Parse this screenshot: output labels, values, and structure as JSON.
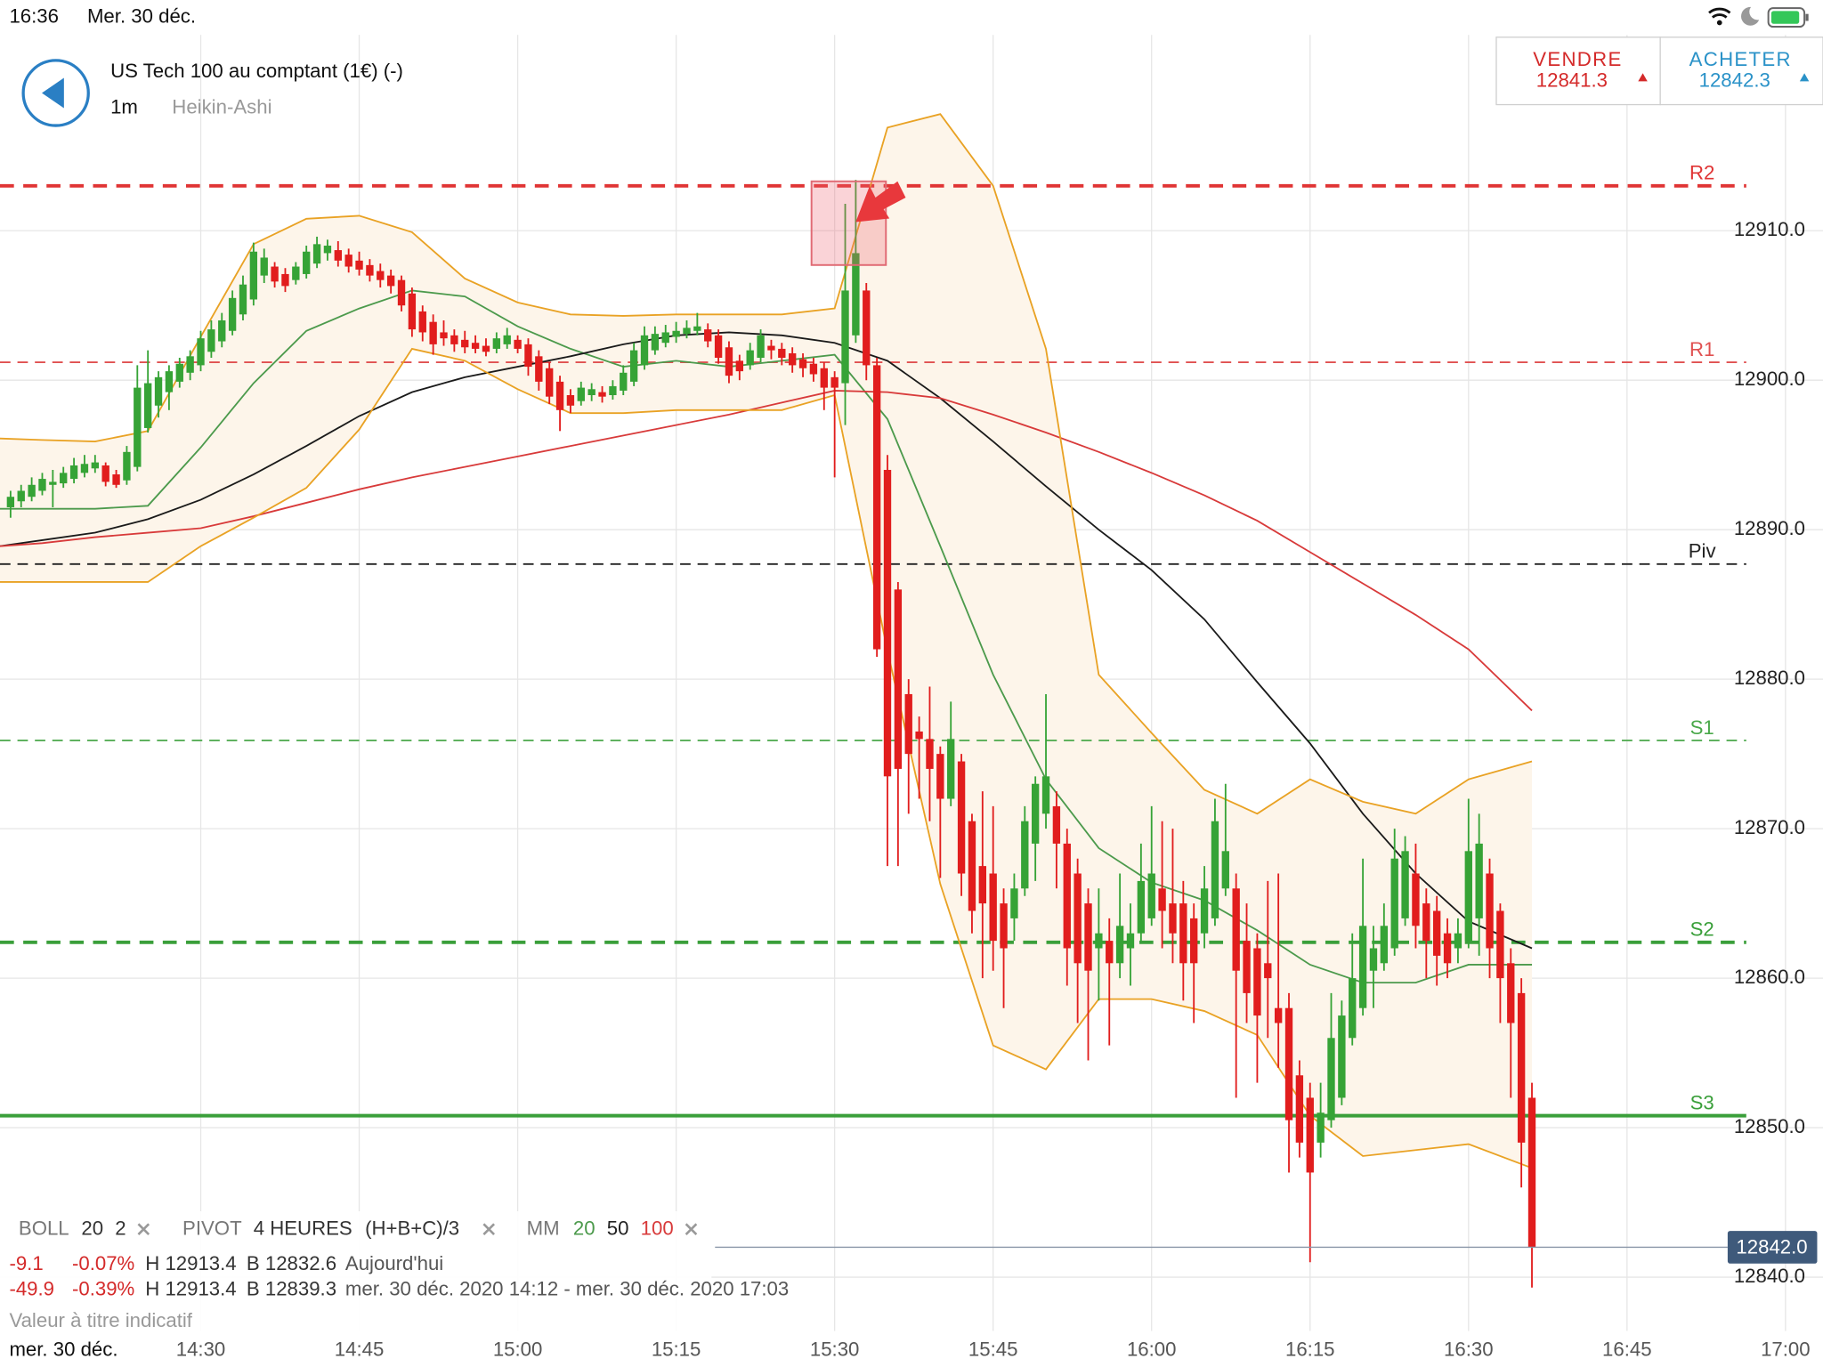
{
  "status_bar": {
    "time": "16:36",
    "date": "Mer. 30 déc."
  },
  "header": {
    "instrument": "US Tech 100 au comptant (1€) (-)",
    "interval": "1m",
    "chart_style": "Heikin-Ashi"
  },
  "quote": {
    "sell_label": "VENDRE",
    "sell": "12841.3",
    "buy_label": "ACHETER",
    "buy": "12842.3"
  },
  "indicators": {
    "boll": {
      "name": "BOLL",
      "period": "20",
      "deviation": "2"
    },
    "pivot": {
      "name": "PIVOT",
      "timeframe": "4 HEURES",
      "formula": "(H+B+C)/3"
    },
    "mm": {
      "name": "MM",
      "periods": [
        "20",
        "50",
        "100"
      ]
    }
  },
  "stats": [
    {
      "change": "-9.1",
      "change_pct": "-0.07%",
      "high": "H 12913.4",
      "low": "B 12832.6",
      "period": "Aujourd'hui"
    },
    {
      "change": "-49.9",
      "change_pct": "-0.39%",
      "high": "H 12913.4",
      "low": "B 12839.3",
      "period": "mer. 30 déc. 2020 14:12 - mer. 30 déc. 2020 17:03"
    }
  ],
  "disclaimer": "Valeur à titre indicatif",
  "chart_data": {
    "type": "candlestick",
    "x_date_label": "mer. 30 déc.",
    "xlim": [
      "14:11",
      "17:03"
    ],
    "xticks": [
      "14:30",
      "14:45",
      "15:00",
      "15:15",
      "15:30",
      "15:45",
      "16:00",
      "16:15",
      "16:30",
      "16:45",
      "17:00"
    ],
    "ylim": [
      12836.4,
      12923.1
    ],
    "yticks": [
      {
        "value": 12840,
        "label": "12840.0"
      },
      {
        "value": 12850,
        "label": "12850.0"
      },
      {
        "value": 12860,
        "label": "12860.0"
      },
      {
        "value": 12870,
        "label": "12870.0"
      },
      {
        "value": 12880,
        "label": "12880.0"
      },
      {
        "value": 12890,
        "label": "12890.0"
      },
      {
        "value": 12900,
        "label": "12900.0"
      },
      {
        "value": 12910,
        "label": "12910.0"
      }
    ],
    "grid": true,
    "up_color": "#36a336",
    "down_color": "#e11d1d",
    "x": [
      "14:12",
      "14:13",
      "14:14",
      "14:15",
      "14:16",
      "14:17",
      "14:18",
      "14:19",
      "14:20",
      "14:21",
      "14:22",
      "14:23",
      "14:24",
      "14:25",
      "14:26",
      "14:27",
      "14:28",
      "14:29",
      "14:30",
      "14:31",
      "14:32",
      "14:33",
      "14:34",
      "14:35",
      "14:36",
      "14:37",
      "14:38",
      "14:39",
      "14:40",
      "14:41",
      "14:42",
      "14:43",
      "14:44",
      "14:45",
      "14:46",
      "14:47",
      "14:48",
      "14:49",
      "14:50",
      "14:51",
      "14:52",
      "14:53",
      "14:54",
      "14:55",
      "14:56",
      "14:57",
      "14:58",
      "14:59",
      "15:00",
      "15:01",
      "15:02",
      "15:03",
      "15:04",
      "15:05",
      "15:06",
      "15:07",
      "15:08",
      "15:09",
      "15:10",
      "15:11",
      "15:12",
      "15:13",
      "15:14",
      "15:15",
      "15:16",
      "15:17",
      "15:18",
      "15:19",
      "15:20",
      "15:21",
      "15:22",
      "15:23",
      "15:24",
      "15:25",
      "15:26",
      "15:27",
      "15:28",
      "15:29",
      "15:30",
      "15:31",
      "15:32",
      "15:33",
      "15:34",
      "15:35",
      "15:36",
      "15:37",
      "15:38",
      "15:39",
      "15:40",
      "15:41",
      "15:42",
      "15:43",
      "15:44",
      "15:45",
      "15:46",
      "15:47",
      "15:48",
      "15:49",
      "15:50",
      "15:51",
      "15:52",
      "15:53",
      "15:54",
      "15:55",
      "15:56",
      "15:57",
      "15:58",
      "15:59",
      "16:00",
      "16:01",
      "16:02",
      "16:03",
      "16:04",
      "16:05",
      "16:06",
      "16:07",
      "16:08",
      "16:09",
      "16:10",
      "16:11",
      "16:12",
      "16:13",
      "16:14",
      "16:15",
      "16:16",
      "16:17",
      "16:18",
      "16:19",
      "16:20",
      "16:21",
      "16:22",
      "16:23",
      "16:24",
      "16:25",
      "16:26",
      "16:27",
      "16:28",
      "16:29",
      "16:30",
      "16:31",
      "16:32",
      "16:33",
      "16:34",
      "16:35",
      "16:36"
    ],
    "open": [
      12891.5,
      12891.9,
      12892.2,
      12892.6,
      12893.0,
      12893.1,
      12893.4,
      12893.8,
      12894.1,
      12894.3,
      12893.7,
      12893.3,
      12894.2,
      12896.8,
      12898.3,
      12899.2,
      12899.9,
      12900.5,
      12901.0,
      12901.9,
      12902.6,
      12903.3,
      12904.4,
      12905.4,
      12907.0,
      12907.6,
      12907.1,
      12906.7,
      12907.1,
      12907.8,
      12908.5,
      12908.7,
      12908.4,
      12908.0,
      12907.7,
      12907.3,
      12907.0,
      12906.7,
      12905.8,
      12904.6,
      12903.9,
      12903.2,
      12903.0,
      12902.7,
      12902.5,
      12902.3,
      12902.1,
      12902.4,
      12902.7,
      12902.4,
      12901.6,
      12900.8,
      12899.9,
      12899.0,
      12898.6,
      12899.0,
      12899.2,
      12899.0,
      12899.3,
      12899.9,
      12901.0,
      12902.0,
      12902.5,
      12902.9,
      12903.1,
      12903.3,
      12903.4,
      12903.0,
      12902.2,
      12901.3,
      12901.0,
      12901.5,
      12902.3,
      12902.1,
      12901.8,
      12901.4,
      12901.1,
      12900.8,
      12900.2,
      12899.8,
      12903.0,
      12906.0,
      12901.0,
      12894.0,
      12886.0,
      12879.0,
      12876.5,
      12876.0,
      12875.0,
      12872.0,
      12874.5,
      12870.5,
      12867.5,
      12867.0,
      12865.0,
      12864.0,
      12866.0,
      12869.0,
      12871.0,
      12871.5,
      12869.0,
      12867.0,
      12865.0,
      12862.0,
      12862.5,
      12861.0,
      12862.0,
      12863.0,
      12864.0,
      12866.0,
      12865.0,
      12865.0,
      12864.0,
      12863.0,
      12864.0,
      12866.0,
      12866.0,
      12862.5,
      12862.0,
      12861.0,
      12858.0,
      12858.0,
      12853.5,
      12852.0,
      12849.0,
      12850.5,
      12852.0,
      12856.0,
      12858.0,
      12860.5,
      12861.0,
      12862.0,
      12864.0,
      12867.0,
      12865.0,
      12864.5,
      12863.0,
      12862.0,
      12862.5,
      12864.0,
      12867.0,
      12864.5,
      12861.0,
      12859.0,
      12852.0
    ],
    "high": [
      12892.6,
      12893.0,
      12893.5,
      12893.8,
      12894.0,
      12894.2,
      12894.8,
      12895.0,
      12895.0,
      12894.5,
      12894.0,
      12895.6,
      12901.0,
      12902.0,
      12900.6,
      12901.0,
      12901.5,
      12902.0,
      12903.3,
      12904.0,
      12904.5,
      12906.0,
      12907.0,
      12909.2,
      12908.8,
      12907.9,
      12907.5,
      12907.9,
      12909.0,
      12909.6,
      12909.4,
      12909.3,
      12908.8,
      12908.6,
      12908.1,
      12907.8,
      12907.4,
      12907.0,
      12906.2,
      12905.0,
      12904.4,
      12904.0,
      12903.4,
      12903.3,
      12903.0,
      12902.8,
      12903.2,
      12903.5,
      12903.0,
      12902.8,
      12902.0,
      12901.2,
      12900.3,
      12899.4,
      12899.9,
      12899.8,
      12899.6,
      12900.0,
      12901.0,
      12902.5,
      12903.6,
      12903.6,
      12903.7,
      12903.9,
      12904.0,
      12904.5,
      12903.8,
      12903.4,
      12902.6,
      12901.7,
      12902.5,
      12903.4,
      12902.7,
      12902.5,
      12902.2,
      12901.8,
      12901.5,
      12901.2,
      12900.6,
      12911.8,
      12913.4,
      12906.5,
      12901.5,
      12895.0,
      12886.5,
      12880.0,
      12877.5,
      12879.5,
      12875.5,
      12878.5,
      12875.0,
      12871.0,
      12872.5,
      12871.5,
      12866.0,
      12867.0,
      12871.5,
      12873.5,
      12879.0,
      12872.5,
      12870.0,
      12868.0,
      12866.0,
      12866.0,
      12864.0,
      12867.0,
      12865.0,
      12869.0,
      12871.5,
      12870.5,
      12870.0,
      12866.5,
      12865.0,
      12867.5,
      12872.0,
      12873.0,
      12867.0,
      12865.0,
      12863.0,
      12866.5,
      12867.0,
      12859.0,
      12854.5,
      12853.0,
      12853.0,
      12859.0,
      12858.5,
      12863.0,
      12868.0,
      12863.5,
      12865.0,
      12870.0,
      12869.5,
      12869.0,
      12866.0,
      12865.5,
      12864.0,
      12864.0,
      12872.0,
      12871.0,
      12868.0,
      12865.0,
      12862.0,
      12860.0,
      12853.0
    ],
    "low": [
      12890.8,
      12891.5,
      12891.9,
      12892.3,
      12891.5,
      12892.8,
      12893.1,
      12893.5,
      12893.8,
      12892.9,
      12892.8,
      12893.0,
      12893.9,
      12896.5,
      12897.5,
      12898.0,
      12899.5,
      12900.0,
      12900.6,
      12901.5,
      12902.2,
      12903.0,
      12904.0,
      12905.0,
      12906.5,
      12906.2,
      12905.9,
      12906.4,
      12906.8,
      12907.5,
      12908.0,
      12907.6,
      12907.2,
      12907.0,
      12906.6,
      12906.2,
      12905.8,
      12904.6,
      12902.9,
      12902.6,
      12901.7,
      12902.3,
      12901.9,
      12901.8,
      12901.8,
      12901.6,
      12901.8,
      12902.1,
      12901.8,
      12900.3,
      12899.3,
      12898.4,
      12896.6,
      12897.8,
      12898.3,
      12898.6,
      12898.5,
      12898.7,
      12899.0,
      12899.6,
      12900.7,
      12901.7,
      12902.2,
      12902.5,
      12902.8,
      12903.0,
      12902.2,
      12901.1,
      12899.8,
      12900.0,
      12900.7,
      12901.2,
      12901.4,
      12901.0,
      12900.5,
      12900.2,
      12899.9,
      12898.0,
      12893.5,
      12897.0,
      12902.5,
      12900.0,
      12881.5,
      12867.5,
      12867.5,
      12871.0,
      12872.0,
      12870.5,
      12866.7,
      12871.5,
      12865.5,
      12863.0,
      12860.0,
      12860.5,
      12858.0,
      12862.5,
      12865.5,
      12866.5,
      12870.0,
      12866.0,
      12859.5,
      12857.0,
      12854.5,
      12858.5,
      12855.5,
      12860.0,
      12859.5,
      12862.5,
      12863.5,
      12862.0,
      12861.0,
      12858.5,
      12857.0,
      12862.0,
      12863.5,
      12865.5,
      12852.0,
      12857.0,
      12853.0,
      12856.0,
      12854.0,
      12847.0,
      12848.0,
      12841.0,
      12848.0,
      12850.0,
      12851.5,
      12855.5,
      12857.5,
      12858.0,
      12860.5,
      12861.5,
      12863.5,
      12862.0,
      12860.0,
      12859.5,
      12860.0,
      12861.0,
      12862.0,
      12861.5,
      12860.0,
      12857.0,
      12852.0,
      12846.0,
      12839.3
    ],
    "close": [
      12892.2,
      12892.6,
      12893.0,
      12893.4,
      12893.2,
      12893.8,
      12894.3,
      12894.4,
      12894.5,
      12893.2,
      12893.0,
      12895.2,
      12899.5,
      12899.8,
      12900.2,
      12900.6,
      12901.1,
      12901.6,
      12902.8,
      12903.4,
      12904.0,
      12905.5,
      12906.4,
      12908.6,
      12908.2,
      12906.6,
      12906.3,
      12907.6,
      12908.6,
      12909.1,
      12909.0,
      12908.0,
      12907.6,
      12907.4,
      12907.0,
      12906.7,
      12906.3,
      12905.0,
      12903.4,
      12903.2,
      12902.4,
      12902.8,
      12902.4,
      12902.2,
      12902.1,
      12901.9,
      12902.8,
      12903.0,
      12902.1,
      12900.9,
      12899.9,
      12898.9,
      12898.0,
      12898.3,
      12899.5,
      12899.4,
      12898.9,
      12899.6,
      12900.5,
      12902.0,
      12903.0,
      12903.1,
      12903.2,
      12903.3,
      12903.5,
      12903.6,
      12902.6,
      12901.5,
      12900.3,
      12900.6,
      12902.0,
      12903.0,
      12902.0,
      12901.5,
      12901.0,
      12900.8,
      12900.4,
      12899.5,
      12899.5,
      12906.0,
      12908.5,
      12901.0,
      12882.0,
      12873.5,
      12874.0,
      12875.0,
      12876.0,
      12874.0,
      12872.0,
      12876.0,
      12867.0,
      12864.5,
      12865.0,
      12862.5,
      12862.0,
      12866.0,
      12870.5,
      12873.0,
      12873.5,
      12869.0,
      12862.0,
      12861.0,
      12860.5,
      12863.0,
      12861.0,
      12863.5,
      12863.0,
      12866.5,
      12867.0,
      12864.5,
      12863.0,
      12861.0,
      12861.0,
      12866.0,
      12870.5,
      12868.5,
      12860.5,
      12859.0,
      12857.5,
      12860.0,
      12857.0,
      12850.5,
      12849.0,
      12847.0,
      12851.0,
      12856.0,
      12857.5,
      12860.0,
      12863.5,
      12862.0,
      12863.5,
      12868.0,
      12868.5,
      12863.5,
      12862.5,
      12861.5,
      12861.0,
      12863.0,
      12868.5,
      12869.0,
      12862.0,
      12860.0,
      12857.0,
      12849.0,
      12842.0
    ],
    "overlay_x": [
      "14:11",
      "14:15",
      "14:20",
      "14:25",
      "14:30",
      "14:35",
      "14:40",
      "14:45",
      "14:50",
      "14:55",
      "15:00",
      "15:05",
      "15:10",
      "15:15",
      "15:20",
      "15:25",
      "15:30",
      "15:35",
      "15:40",
      "15:45",
      "15:50",
      "15:55",
      "16:00",
      "16:05",
      "16:10",
      "16:15",
      "16:20",
      "16:25",
      "16:30",
      "16:36"
    ],
    "band_fill": "#fdf5ea",
    "overlays": [
      {
        "color": "#4c9a4c",
        "values": [
          12891.4,
          12891.4,
          12891.4,
          12891.6,
          12895.5,
          12899.8,
          12903.3,
          12904.8,
          12906.0,
          12905.6,
          12903.6,
          12902.1,
          12900.9,
          12901.3,
          12900.9,
          12901.3,
          12901.7,
          12897.4,
          12888.9,
          12880.3,
          12873.3,
          12868.7,
          12866.4,
          12865.2,
          12863.2,
          12860.9,
          12859.7,
          12859.7,
          12860.9,
          12860.9
        ]
      },
      {
        "color": "#1a1a1a",
        "values": [
          12888.9,
          12889.3,
          12889.8,
          12890.7,
          12892.0,
          12893.7,
          12895.6,
          12897.6,
          12899.2,
          12900.2,
          12900.9,
          12901.6,
          12902.4,
          12903.0,
          12903.2,
          12903.0,
          12902.5,
          12901.3,
          12898.8,
          12895.9,
          12892.9,
          12890.0,
          12887.3,
          12884.0,
          12879.8,
          12875.7,
          12871.0,
          12867.0,
          12863.8,
          12862.0
        ]
      },
      {
        "color": "#d83a3a",
        "values": [
          12888.9,
          12889.1,
          12889.5,
          12889.8,
          12890.1,
          12890.9,
          12891.8,
          12892.7,
          12893.5,
          12894.2,
          12894.9,
          12895.6,
          12896.3,
          12897.0,
          12897.7,
          12898.5,
          12899.3,
          12899.2,
          12898.8,
          12897.7,
          12896.5,
          12895.2,
          12893.8,
          12892.3,
          12890.6,
          12888.5,
          12886.4,
          12884.3,
          12882.0,
          12877.9
        ]
      },
      {
        "color": "#e9a224",
        "values": [
          12896.1,
          12896.0,
          12895.9,
          12896.6,
          12902.9,
          12909.1,
          12910.8,
          12911.0,
          12909.9,
          12906.8,
          12905.2,
          12904.4,
          12904.3,
          12904.4,
          12904.4,
          12904.4,
          12904.8,
          12916.9,
          12917.8,
          12913.0,
          12902.1,
          12880.3,
          12876.4,
          12872.6,
          12871.0,
          12873.3,
          12871.8,
          12871.0,
          12873.3,
          12874.5
        ]
      },
      {
        "color": "#e9a224",
        "values": [
          12886.5,
          12886.5,
          12886.5,
          12886.5,
          12888.9,
          12890.8,
          12892.8,
          12896.7,
          12902.1,
          12901.3,
          12899.4,
          12897.8,
          12897.8,
          12898.0,
          12898.0,
          12898.0,
          12899.0,
          12881.9,
          12866.3,
          12855.5,
          12853.9,
          12858.6,
          12858.6,
          12857.8,
          12856.2,
          12850.8,
          12848.1,
          12848.5,
          12848.9,
          12847.3
        ]
      }
    ],
    "levels": [
      {
        "label": "R2",
        "value": 12913,
        "color": "#e03434",
        "style": "thick-dashed"
      },
      {
        "label": "R1",
        "value": 12901.2,
        "color": "#e05050",
        "style": "dashed"
      },
      {
        "label": "Piv",
        "value": 12887.7,
        "color": "#222222",
        "style": "dashed"
      },
      {
        "label": "S1",
        "value": 12875.9,
        "color": "#4aa84a",
        "style": "dashed"
      },
      {
        "label": "S2",
        "value": 12862.4,
        "color": "#3a9f3a",
        "style": "thick-dashed"
      },
      {
        "label": "S3",
        "value": 12850.8,
        "color": "#3a9f3a",
        "style": "solid"
      }
    ],
    "last_price": {
      "value": 12842.0,
      "label": "12842.0"
    }
  }
}
